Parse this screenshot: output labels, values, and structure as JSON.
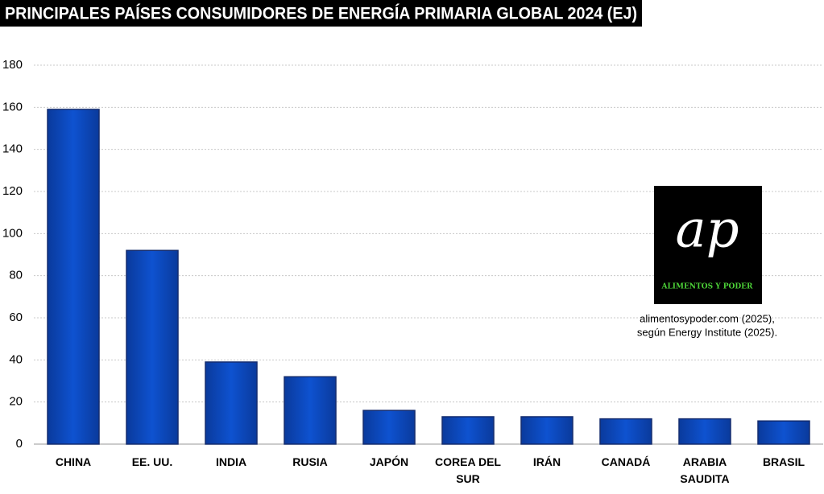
{
  "chart_data": {
    "type": "bar",
    "title": "PRINCIPALES PAÍSES CONSUMIDORES DE ENERGÍA PRIMARIA GLOBAL 2024 (EJ)",
    "categories": [
      "CHINA",
      "EE. UU.",
      "INDIA",
      "RUSIA",
      "JAPÓN",
      "COREA DEL SUR",
      "IRÁN",
      "CANADÁ",
      "ARABIA SAUDITA",
      "BRASIL"
    ],
    "values": [
      159,
      92,
      39,
      32,
      16,
      13,
      13,
      12,
      12,
      11
    ],
    "color": "#0b4cc2",
    "ylim": [
      0,
      180
    ],
    "yticks": [
      0,
      20,
      40,
      60,
      80,
      100,
      120,
      140,
      160,
      180
    ],
    "grid": true,
    "logo": {
      "mark": "ap",
      "caption": "ALIMENTOS Y PODER"
    },
    "source": [
      "alimentosypoder.com (2025),",
      "según Energy Institute (2025)."
    ]
  }
}
